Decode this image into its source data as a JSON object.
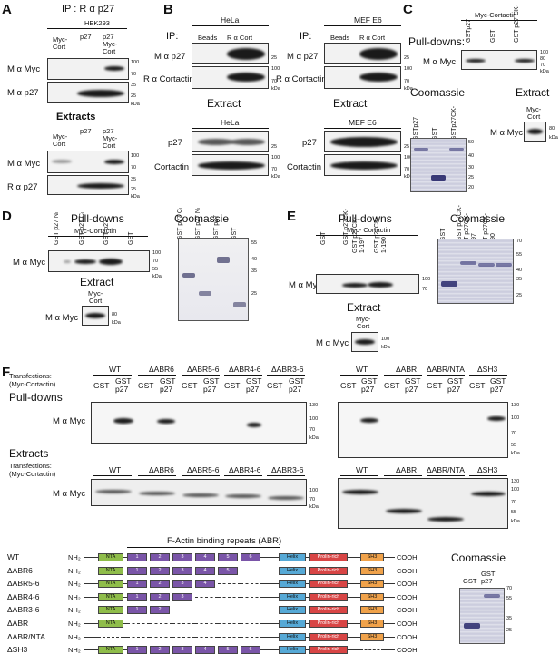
{
  "panel_letters": [
    "A",
    "B",
    "C",
    "D",
    "E",
    "F"
  ],
  "A": {
    "title": "IP : R α p27",
    "cell_line": "HEK293",
    "lanes_top": [
      "Myc-\nCort",
      "p27",
      "p27\nMyc-\nCort"
    ],
    "rows": [
      "M α Myc",
      "M α p27"
    ],
    "mw_top_1": [
      "100",
      "70"
    ],
    "mw_top_2": [
      "35",
      "25"
    ],
    "extracts_title": "Extracts",
    "lanes_ext": [
      "Myc-\nCort",
      "p27",
      "p27\nMyc-\nCort"
    ],
    "rows_ext": [
      "M α Myc",
      "R α p27"
    ],
    "mw_ext_1": [
      "100",
      "70"
    ],
    "mw_ext_2": [
      "35",
      "25"
    ],
    "kda": "kDa"
  },
  "B": {
    "hela_title": "HeLa",
    "mef_title": "MEF E6",
    "ip_label": "IP:",
    "lanes": [
      "Beads",
      "R α Cort"
    ],
    "rows": [
      "M α p27",
      "R α Cortactin"
    ],
    "mw_1": [
      "25"
    ],
    "mw_2": [
      "100",
      "70"
    ],
    "extract_title": "Extract",
    "hela_ext": "HeLa",
    "mef_ext": "MEF E6",
    "ext_rows": [
      "p27",
      "Cortactin"
    ],
    "ext_mw_1": [
      "25"
    ],
    "ext_mw_2": [
      "100",
      "70"
    ],
    "kda": "kDa"
  },
  "C": {
    "header": "Myc-Cortactin",
    "pulldowns": "Pull-downs:",
    "lanes": [
      "GSTp27",
      "GST",
      "GST p27 CK-"
    ],
    "row": "M α Myc",
    "mw": [
      "100",
      "80",
      "70"
    ],
    "coomassie": "Coomassie",
    "gel_lanes": [
      "GSTp27",
      "GST",
      "GSTp27CK-"
    ],
    "gel_mw": [
      "50",
      "40",
      "30",
      "25",
      "20"
    ],
    "extract": "Extract",
    "ext_lane": "Myc-\nCort",
    "ext_row": "M α Myc",
    "ext_mw": [
      "80"
    ],
    "kda": "kDa"
  },
  "D": {
    "pulldowns": "Pull-downs",
    "header": "Myc-Cortactin",
    "lanes": [
      "GST p27 Nₗ",
      "GST p27 Cₗ",
      "GST p27",
      "GST"
    ],
    "row": "M α Myc",
    "mw": [
      "100",
      "70",
      "55"
    ],
    "coomassie": "Coomassie",
    "gel_lanes": [
      "GST p27 Cₗ",
      "GST p27 Nₗ",
      "GST p27",
      "GST"
    ],
    "gel_mw": [
      "55",
      "40",
      "35",
      "25"
    ],
    "extract": "Extract",
    "ext_lane": "Myc-\nCort",
    "ext_row": "M α Myc",
    "ext_mw": [
      "80"
    ],
    "kda": "kDa"
  },
  "E": {
    "pulldowns": "Pull-downs",
    "header": "Myc- Cortactin",
    "lanes": [
      "GST",
      "GST p27CK-",
      "GST p27CK-\n1-197",
      "GST p27CK-\n1-190"
    ],
    "row": "M α Myc",
    "mw": [
      "100",
      "70"
    ],
    "coomassie": "Coomassie",
    "gel_lanes": [
      "GST",
      "GST p27CK-",
      "GST p27CK-\n1-197",
      "GST p27CK-\n1-190"
    ],
    "gel_mw": [
      "70",
      "55",
      "40",
      "35",
      "25"
    ],
    "extract": "Extract",
    "ext_lane": "Myc-\nCort",
    "ext_row": "M α Myc",
    "ext_mw": [
      "100"
    ],
    "kda": "kDa"
  },
  "F": {
    "transfections": "Transfections:\n(Myc-Cortactin)",
    "pulldowns": "Pull-downs",
    "extracts": "Extracts",
    "groups_left": [
      "WT",
      "ΔABR6",
      "ΔABR5-6",
      "ΔABR4-6",
      "ΔABR3-6"
    ],
    "groups_right": [
      "WT",
      "ΔABR",
      "ΔABR/NTA",
      "ΔSH3"
    ],
    "sub_gst": "GST",
    "sub_gstp27": "GST\np27",
    "row": "M α Myc",
    "mw_pd": [
      "130",
      "100",
      "70"
    ],
    "mw_pd_right": [
      "130",
      "100",
      "70",
      "55"
    ],
    "mw_ext": [
      "100",
      "70"
    ],
    "mw_ext_right": [
      "130",
      "100",
      "70",
      "55"
    ],
    "kda": "kDa",
    "abr_title": "F-Actin binding repeats (ABR)",
    "constructs": [
      "WT",
      "ΔABR6",
      "ΔABR5-6",
      "ΔABR4-6",
      "ΔABR3-6",
      "ΔABR",
      "ΔABR/NTA",
      "ΔSH3"
    ],
    "nh2": "NH₂",
    "cooh": "COOH",
    "domains": {
      "nta": "NTA",
      "helix": "Helix",
      "pro": "Prolin-rich",
      "sh3": "SH3",
      "repeats": [
        "1",
        "2",
        "3",
        "4",
        "5",
        "6"
      ]
    },
    "coomassie": "Coomassie",
    "gel_lanes": [
      "GST",
      "GST\np27"
    ],
    "gel_mw": [
      "70",
      "55",
      "35",
      "25"
    ]
  },
  "colors": {
    "nta": "#8fbd4a",
    "abr": "#7a55a8",
    "helix": "#56a9d6",
    "pro": "#d84545",
    "sh3": "#f0a24a"
  }
}
